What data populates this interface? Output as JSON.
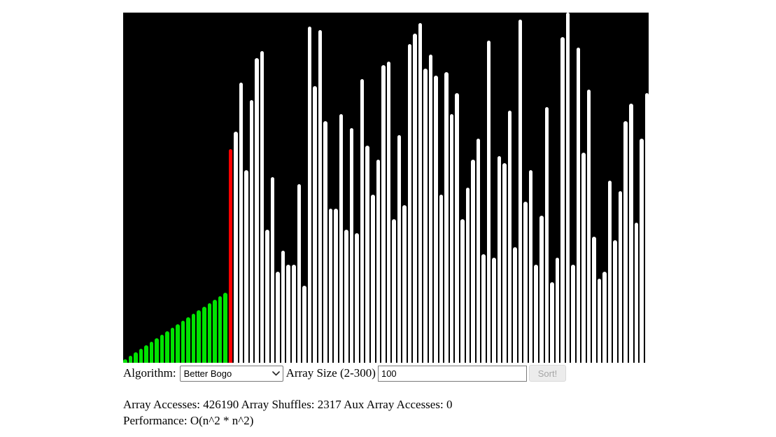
{
  "controls": {
    "algorithm_label": "Algorithm:",
    "algorithm_select": {
      "value": "Better Bogo"
    },
    "array_size_label": "Array Size (2-300)",
    "array_size_value": "100",
    "sort_button": {
      "label": "Sort!",
      "disabled": true
    }
  },
  "icons": {
    "select_chevron": "chevron-down"
  },
  "stats": {
    "array_accesses_label": "Array Accesses:",
    "array_accesses": "426190",
    "array_shuffles_label": "Array Shuffles:",
    "array_shuffles": "2317",
    "aux_accesses_label": "Aux Array Accesses:",
    "aux_accesses": "0",
    "performance_label": "Performance:",
    "performance": "O(n^2 * n^2)"
  },
  "chart_data": {
    "type": "bar",
    "title": "Sorting visualizer canvas (Better Bogo, array size 100)",
    "ylim": [
      0,
      100
    ],
    "grid": false,
    "legend": "none",
    "background_color": "#000000",
    "colors": {
      "sorted": "#00e300",
      "highlight": "#ff0000",
      "default": "#ffffff"
    },
    "sorted_prefix_count": 20,
    "highlight_index": 20,
    "values": [
      1,
      2,
      3,
      4,
      5,
      6,
      7,
      8,
      9,
      10,
      11,
      12,
      13,
      14,
      15,
      16,
      17,
      18,
      19,
      20,
      61,
      66,
      80,
      55,
      75,
      87,
      89,
      38,
      53,
      26,
      32,
      28,
      28,
      51,
      22,
      96,
      79,
      95,
      69,
      44,
      44,
      71,
      38,
      67,
      37,
      81,
      62,
      48,
      58,
      85,
      86,
      41,
      65,
      45,
      91,
      94,
      97,
      84,
      88,
      82,
      48,
      83,
      71,
      77,
      41,
      50,
      58,
      64,
      31,
      92,
      30,
      59,
      57,
      72,
      33,
      98,
      46,
      55,
      28,
      42,
      73,
      23,
      30,
      93,
      100,
      28,
      90,
      60,
      78,
      36,
      24,
      26,
      52,
      35,
      49,
      69,
      74,
      40,
      64,
      77
    ]
  }
}
